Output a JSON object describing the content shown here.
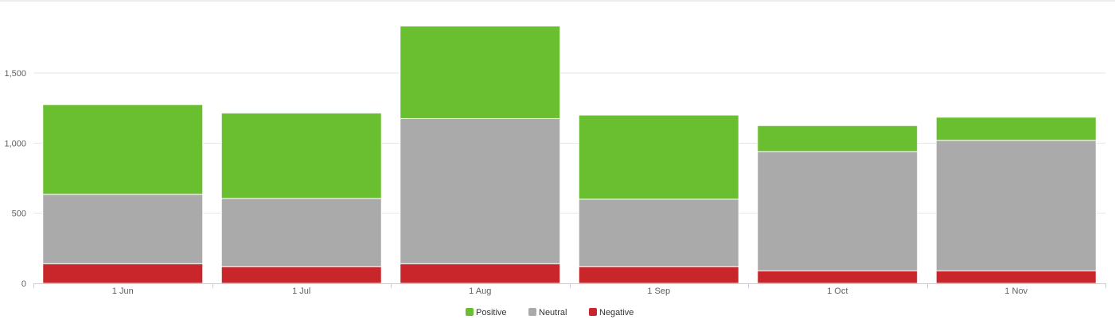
{
  "chart_data": {
    "type": "bar",
    "stacked": true,
    "categories": [
      "1 Jun",
      "1 Jul",
      "1 Aug",
      "1 Sep",
      "1 Oct",
      "1 Nov"
    ],
    "series": [
      {
        "name": "Negative",
        "values": [
          140,
          120,
          140,
          120,
          90,
          90
        ]
      },
      {
        "name": "Neutral",
        "values": [
          495,
          485,
          1035,
          480,
          850,
          930
        ]
      },
      {
        "name": "Positive",
        "values": [
          640,
          610,
          660,
          600,
          185,
          165
        ]
      }
    ],
    "y_ticks": [
      "0",
      "500",
      "1,000",
      "1,500"
    ],
    "ylim": [
      0,
      1850
    ],
    "legend_position": "bottom-center",
    "grid": true
  },
  "colors": {
    "Positive": "#6abf30",
    "Neutral": "#aaaaaa",
    "Negative": "#c9262b",
    "grid": "#e6e6e6",
    "axis": "#c0d0e0",
    "top_border": "#d8d8d8"
  },
  "legend": {
    "items": [
      "Positive",
      "Neutral",
      "Negative"
    ]
  }
}
